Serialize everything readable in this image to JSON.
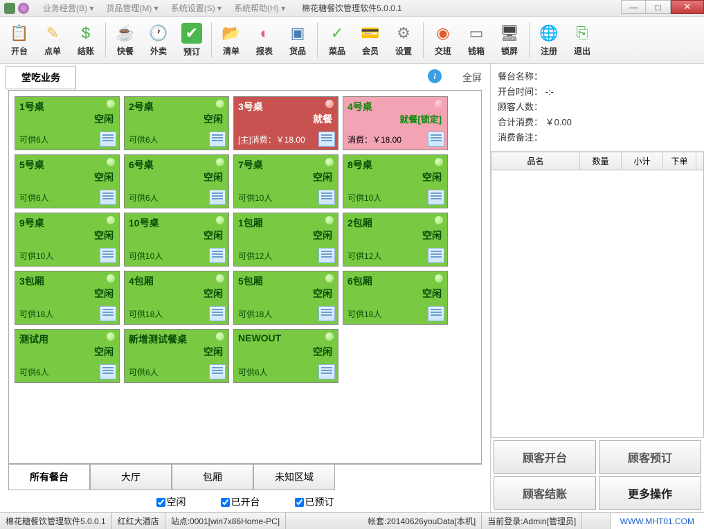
{
  "app": {
    "title": "棉花糖餐饮管理软件5.0.0.1"
  },
  "menus": [
    "业务经营(B)",
    "货品管理(M)",
    "系统设置(S)",
    "系统帮助(H)"
  ],
  "toolbar": [
    {
      "label": "开台",
      "icon": "📋",
      "color": "#4aa3df"
    },
    {
      "label": "点单",
      "icon": "✎",
      "color": "#e6b84c"
    },
    {
      "label": "结账",
      "icon": "$",
      "color": "#3aa83a"
    },
    {
      "sep": true
    },
    {
      "label": "快餐",
      "icon": "☕",
      "color": "#7a5c3e"
    },
    {
      "label": "外卖",
      "icon": "🕐",
      "color": "#4a6fa5"
    },
    {
      "label": "预订",
      "icon": "✔",
      "color": "#4cb74c",
      "bg": "#4cb74c"
    },
    {
      "sep": true
    },
    {
      "label": "清单",
      "icon": "📂",
      "color": "#e89a3c"
    },
    {
      "label": "报表",
      "icon": "◐",
      "color": "#e05a8c"
    },
    {
      "label": "货品",
      "icon": "▣",
      "color": "#4a7fb5"
    },
    {
      "sep": true
    },
    {
      "label": "菜品",
      "icon": "✓",
      "color": "#4cb74c"
    },
    {
      "label": "会员",
      "icon": "💳",
      "color": "#5a7fa5"
    },
    {
      "label": "设置",
      "icon": "⚙",
      "color": "#888"
    },
    {
      "sep": true
    },
    {
      "label": "交班",
      "icon": "◉",
      "color": "#e05a2c"
    },
    {
      "label": "钱箱",
      "icon": "▭",
      "color": "#777"
    },
    {
      "label": "锁屏",
      "icon": "🖥",
      "color": "#444"
    },
    {
      "sep": true
    },
    {
      "label": "注册",
      "icon": "🌐",
      "color": "#4a9f4a"
    },
    {
      "label": "退出",
      "icon": "⎘",
      "color": "#4cb74c"
    }
  ],
  "mainTab": "堂吃业务",
  "fullscreen": "全屏",
  "tables": [
    {
      "name": "1号桌",
      "state": "空闲",
      "cap": "可供6人",
      "type": "idle"
    },
    {
      "name": "2号桌",
      "state": "空闲",
      "cap": "可供6人",
      "type": "idle"
    },
    {
      "name": "3号桌",
      "state": "就餐",
      "cap": "[主]消费：￥18.00",
      "type": "busy"
    },
    {
      "name": "4号桌",
      "state": "就餐[锁定]",
      "cap": "消费：￥18.00",
      "type": "locked"
    },
    {
      "name": "5号桌",
      "state": "空闲",
      "cap": "可供6人",
      "type": "idle"
    },
    {
      "name": "6号桌",
      "state": "空闲",
      "cap": "可供6人",
      "type": "idle"
    },
    {
      "name": "7号桌",
      "state": "空闲",
      "cap": "可供10人",
      "type": "idle"
    },
    {
      "name": "8号桌",
      "state": "空闲",
      "cap": "可供10人",
      "type": "idle"
    },
    {
      "name": "9号桌",
      "state": "空闲",
      "cap": "可供10人",
      "type": "idle"
    },
    {
      "name": "10号桌",
      "state": "空闲",
      "cap": "可供10人",
      "type": "idle"
    },
    {
      "name": "1包厢",
      "state": "空闲",
      "cap": "可供12人",
      "type": "idle"
    },
    {
      "name": "2包厢",
      "state": "空闲",
      "cap": "可供12人",
      "type": "idle"
    },
    {
      "name": "3包厢",
      "state": "空闲",
      "cap": "可供18人",
      "type": "idle"
    },
    {
      "name": "4包厢",
      "state": "空闲",
      "cap": "可供18人",
      "type": "idle"
    },
    {
      "name": "5包厢",
      "state": "空闲",
      "cap": "可供18人",
      "type": "idle"
    },
    {
      "name": "6包厢",
      "state": "空闲",
      "cap": "可供18人",
      "type": "idle"
    },
    {
      "name": "测试用",
      "state": "空闲",
      "cap": "可供6人",
      "type": "idle"
    },
    {
      "name": "新增测试餐桌",
      "state": "空闲",
      "cap": "可供6人",
      "type": "idle"
    },
    {
      "name": "NEWOUT",
      "state": "空闲",
      "cap": "可供6人",
      "type": "idle"
    }
  ],
  "bottomTabs": [
    "所有餐台",
    "大厅",
    "包厢",
    "未知区域"
  ],
  "filters": [
    "空闲",
    "已开台",
    "已预订"
  ],
  "info": {
    "l1": "餐台名称：",
    "l2": "开台时间：  -:-",
    "l3": "顾客人数：",
    "l4": "合计消费： ￥0.00",
    "l5": "消费备注："
  },
  "orderCols": [
    {
      "label": "品名",
      "w": 128
    },
    {
      "label": "数量",
      "w": 60
    },
    {
      "label": "小计",
      "w": 60
    },
    {
      "label": "下单",
      "w": 48
    }
  ],
  "actions": [
    "顾客开台",
    "顾客预订",
    "顾客结账",
    "更多操作"
  ],
  "status": {
    "s1": "棉花糖餐饮管理软件5.0.0.1",
    "s2": "红红大酒店",
    "s3": "站点:0001[win7x86Home-PC]",
    "s4": "帐套:20140626youData[本机]",
    "s5": "当前登录:Admin[管理员]",
    "url": "WWW.MHT01.COM"
  },
  "colors": {
    "idle": "#7ac943",
    "busy": "#c8524f",
    "locked": "#f3a3b4"
  }
}
